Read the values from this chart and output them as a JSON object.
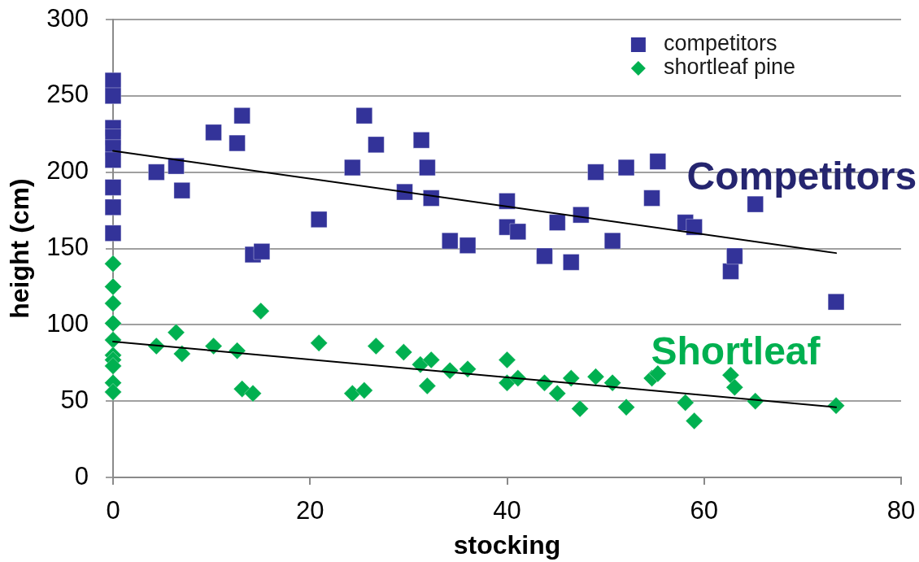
{
  "chart_data": {
    "type": "scatter",
    "xlabel": "stocking",
    "ylabel": "height (cm)",
    "xlim": [
      0,
      80
    ],
    "xticks": [
      0,
      20,
      40,
      60,
      80
    ],
    "ylim": [
      0,
      300
    ],
    "yticks": [
      0,
      50,
      100,
      150,
      200,
      250,
      300
    ],
    "grid": "y",
    "legend": "top right",
    "series": [
      {
        "name": "competitors",
        "color": "#333399",
        "marker": "square",
        "x": [
          0,
          0,
          0,
          0,
          0,
          0,
          0,
          0,
          0,
          4.4,
          6.4,
          7.0,
          10.2,
          12.6,
          13.1,
          14.2,
          15.1,
          20.9,
          24.3,
          25.5,
          26.7,
          29.6,
          31.3,
          31.9,
          32.3,
          34.2,
          36.0,
          40.0,
          40.0,
          41.1,
          43.8,
          45.1,
          46.5,
          47.5,
          49.0,
          50.7,
          52.1,
          54.7,
          55.3,
          58.1,
          59.0,
          62.7,
          63.1,
          65.2,
          73.4
        ],
        "values": [
          260,
          250,
          229,
          223,
          216,
          208,
          190,
          177,
          160,
          200,
          204,
          188,
          226,
          219,
          237,
          146,
          148,
          169,
          203,
          237,
          218,
          187,
          221,
          203,
          183,
          155,
          152,
          181,
          164,
          161,
          145,
          167,
          141,
          172,
          200,
          155,
          203,
          183,
          207,
          167,
          164,
          135,
          145,
          179,
          115
        ]
      },
      {
        "name": "shortleaf pine",
        "color": "#00b050",
        "marker": "diamond",
        "x": [
          0,
          0,
          0,
          0,
          0,
          0,
          0,
          0,
          0,
          0,
          4.4,
          6.4,
          7.0,
          10.2,
          12.6,
          13.1,
          14.2,
          15.0,
          20.9,
          24.3,
          25.5,
          26.7,
          29.5,
          31.2,
          31.9,
          32.3,
          34.2,
          36.0,
          40.0,
          40.0,
          41.1,
          43.8,
          45.1,
          46.5,
          47.4,
          49.0,
          50.7,
          52.1,
          54.7,
          55.3,
          58.1,
          59.0,
          62.7,
          63.1,
          65.2,
          73.4
        ],
        "values": [
          140,
          125,
          114,
          101,
          90,
          80,
          77,
          73,
          62,
          56,
          86,
          95,
          81,
          86,
          83,
          58,
          55,
          109,
          88,
          55,
          57,
          86,
          82,
          74,
          60,
          77,
          70,
          71,
          77,
          62,
          65,
          62,
          55,
          65,
          45,
          66,
          62,
          46,
          65,
          68,
          49,
          37,
          67,
          59,
          50,
          47
        ]
      },
      {
        "type": "line",
        "color": "#000000",
        "marker": "none",
        "x": [
          0,
          73.4
        ],
        "values": [
          214,
          147
        ]
      },
      {
        "type": "line",
        "color": "#000000",
        "marker": "none",
        "x": [
          0,
          73.4
        ],
        "values": [
          89,
          46
        ]
      }
    ],
    "annotations": [
      "Competitors",
      "Shortleaf"
    ]
  }
}
